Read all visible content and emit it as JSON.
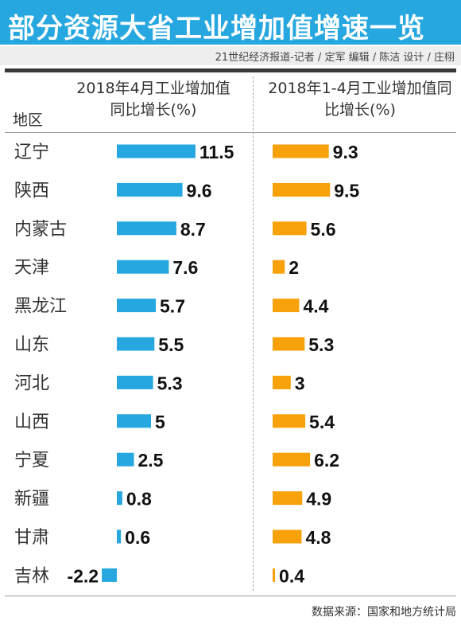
{
  "title": "部分资源大省工业增加值增速一览",
  "credit": "21世纪经济报道-记者 / 定军   编辑 / 陈洁   设计 / 庄栩",
  "source": "数据来源：国家和地方统计局",
  "colors": {
    "title_bg": "#26a7df",
    "series1": "#26a7df",
    "series2": "#f7a10b"
  },
  "chart_data": {
    "type": "bar",
    "orientation": "horizontal",
    "category_header": "地区",
    "categories": [
      "辽宁",
      "陕西",
      "内蒙古",
      "天津",
      "黑龙江",
      "山东",
      "河北",
      "山西",
      "宁夏",
      "新疆",
      "甘肃",
      "吉林"
    ],
    "series": [
      {
        "name": "2018年4月工业增加值同比增长(%)",
        "values": [
          11.5,
          9.6,
          8.7,
          7.6,
          5.7,
          5.5,
          5.3,
          5,
          2.5,
          0.8,
          0.6,
          -2.2
        ]
      },
      {
        "name": "2018年1-4月工业增加值同比增长(%)",
        "values": [
          9.3,
          9.5,
          5.6,
          2,
          4.4,
          5.3,
          3,
          5.4,
          6.2,
          4.9,
          4.8,
          0.4
        ]
      }
    ],
    "grid": false,
    "data_labels": true
  }
}
